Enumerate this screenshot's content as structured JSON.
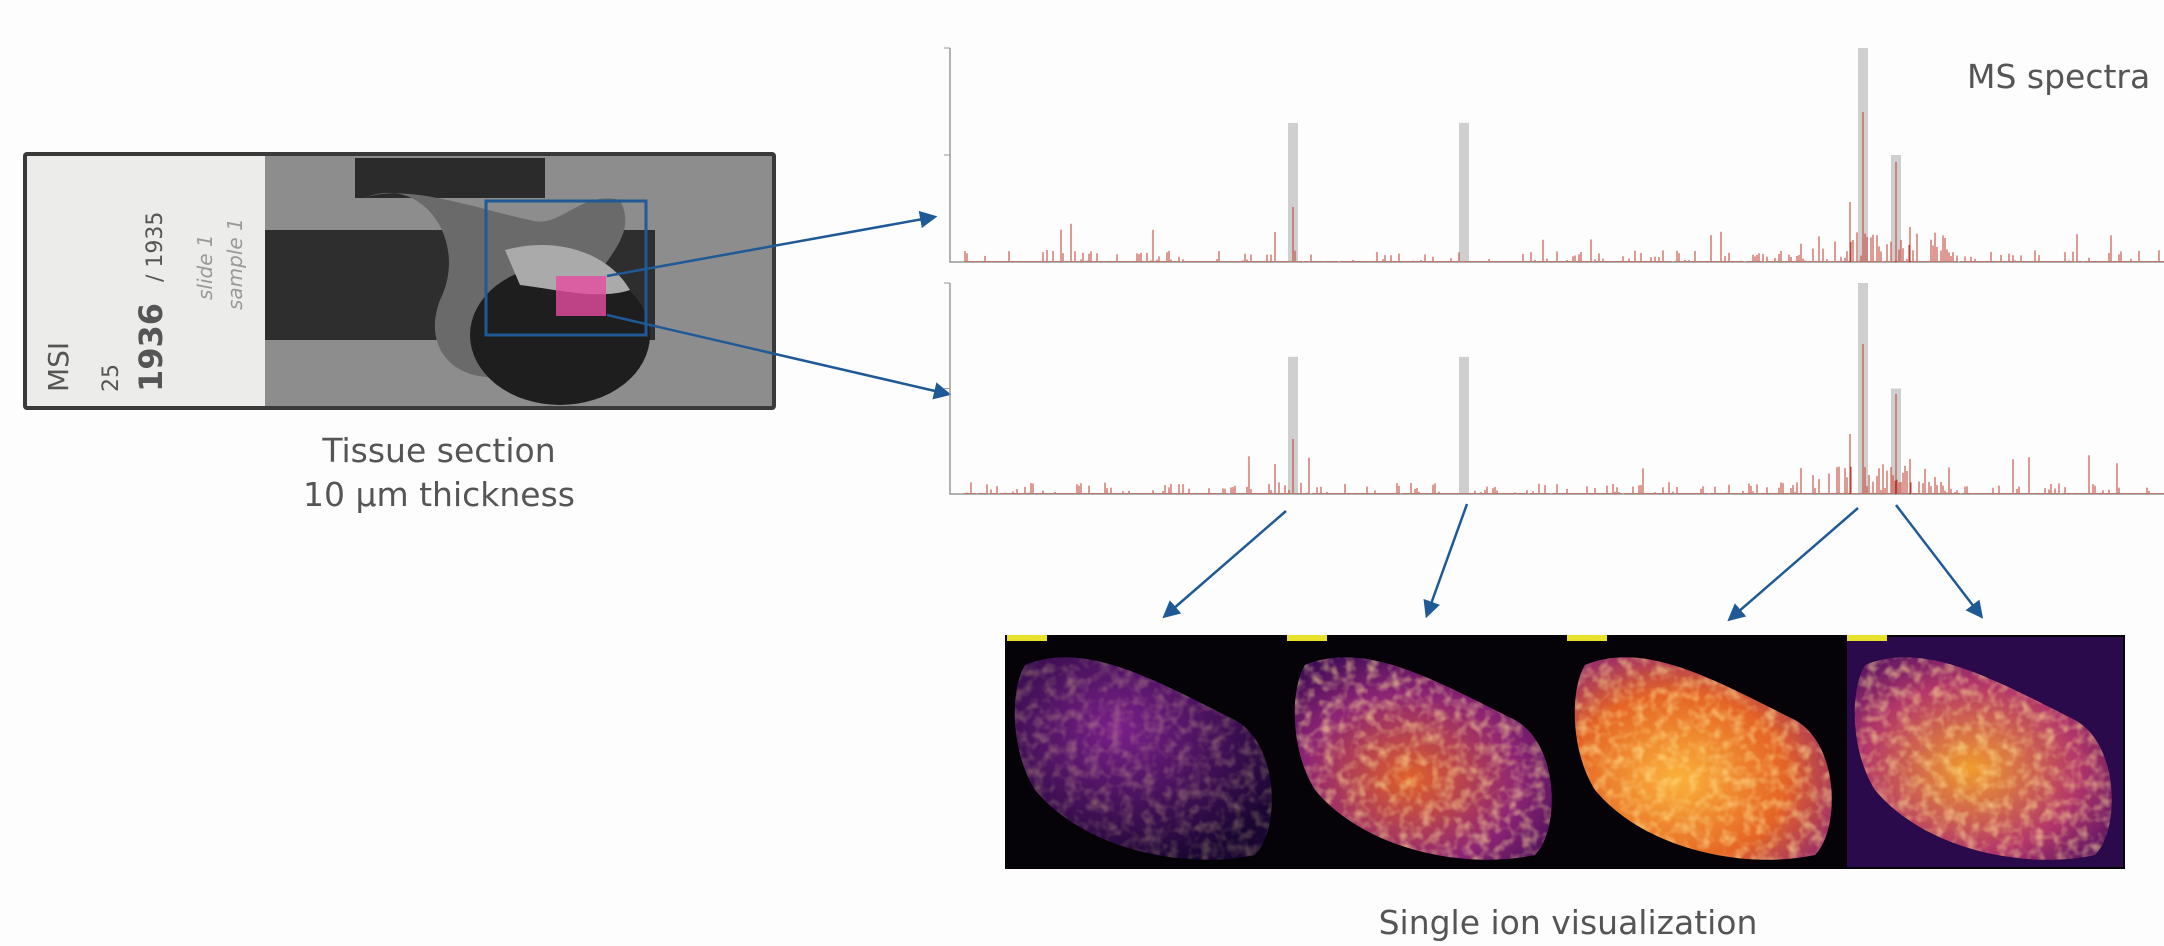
{
  "labels": {
    "ms_spectra": "MS spectra",
    "tissue_section": [
      "Tissue section",
      "10 µm thickness"
    ],
    "single_ion": "Single ion visualization"
  },
  "slide": {
    "texts": [
      "MSI",
      "25",
      "1936",
      "/ 1935",
      "slide 1",
      "sample 1"
    ]
  }
}
